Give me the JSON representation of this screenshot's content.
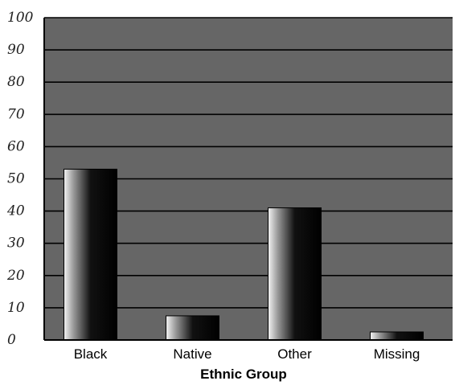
{
  "chart_data": {
    "type": "bar",
    "title": "",
    "xlabel": "Ethnic Group",
    "ylabel": "",
    "categories": [
      "Black",
      "Native",
      "Other",
      "Missing"
    ],
    "values": [
      53,
      7.5,
      41,
      2.5
    ],
    "ylim": [
      0,
      100
    ],
    "yticks": [
      "0",
      "10",
      "20",
      "30",
      "40",
      "50",
      "60",
      "70",
      "80",
      "90",
      "100"
    ],
    "grid": true,
    "legend": "none"
  },
  "colors": {
    "plot_background": "#666666",
    "gridline": "#000000",
    "bar_light": "#ffffff",
    "bar_dark": "#000000"
  }
}
